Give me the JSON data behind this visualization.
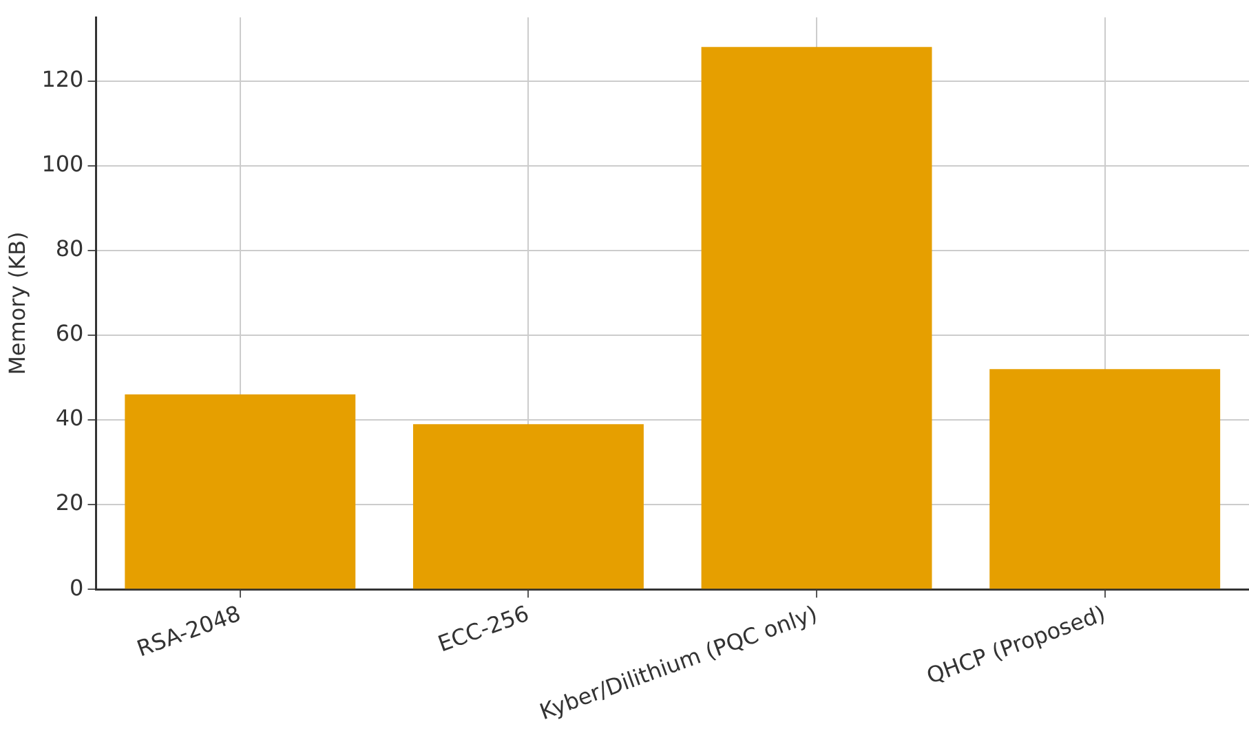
{
  "chart_data": {
    "type": "bar",
    "ylabel": "Memory (KB)",
    "categories": [
      "RSA-2048",
      "ECC-256",
      "Kyber/Dilithium (PQC only)",
      "QHCP (Proposed)"
    ],
    "values": [
      46,
      39,
      128,
      52
    ],
    "color": "#e69f00",
    "ylim": [
      0,
      135
    ],
    "yticks": [
      0,
      20,
      40,
      60,
      80,
      100,
      120
    ],
    "grid": true
  }
}
